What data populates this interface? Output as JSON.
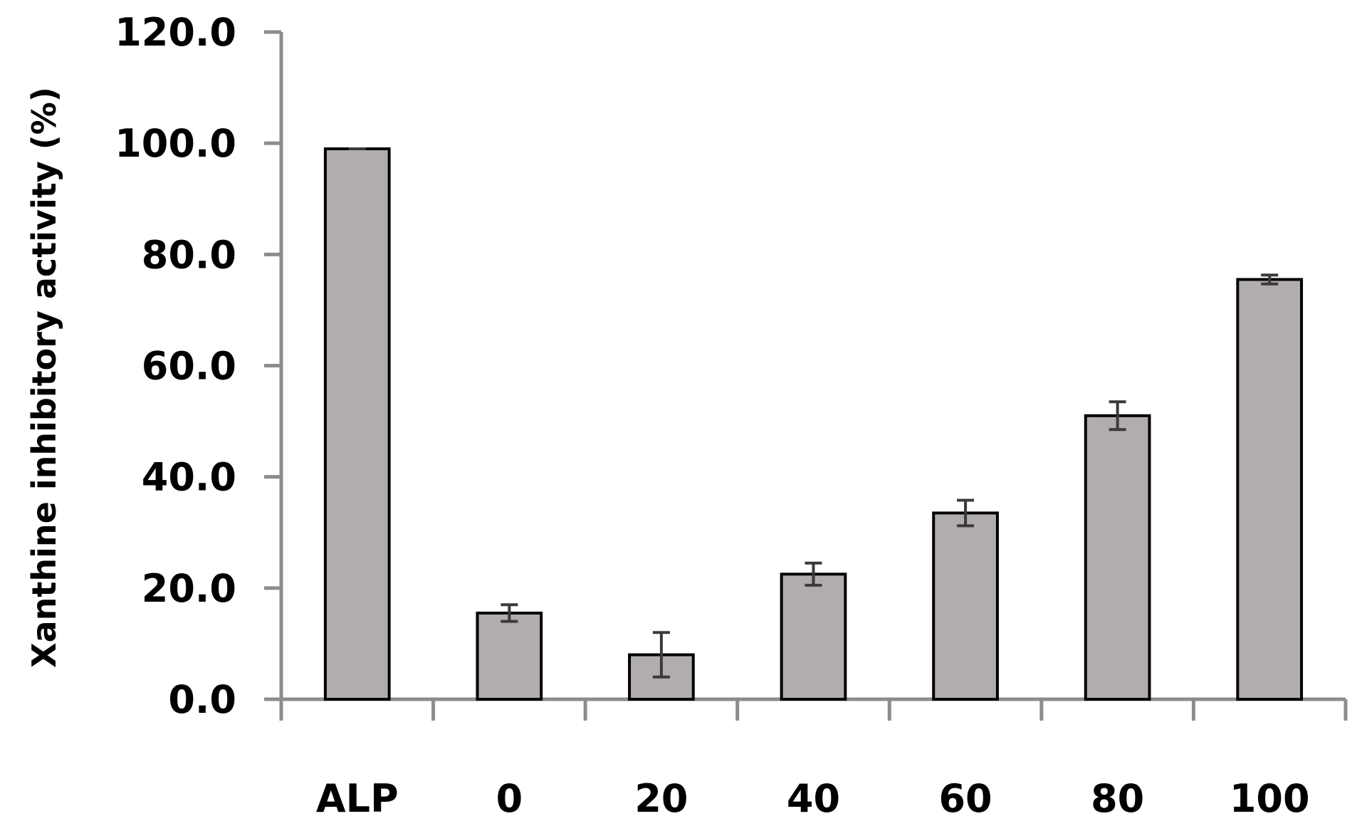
{
  "chart_data": {
    "type": "bar",
    "title": "",
    "xlabel": "",
    "ylabel": "Xanthine inhibitory activity (%)",
    "ylim": [
      0,
      120
    ],
    "yticks": [
      "0.0",
      "20.0",
      "40.0",
      "60.0",
      "80.0",
      "100.0",
      "120.0"
    ],
    "categories": [
      "ALP",
      "0",
      "20",
      "40",
      "60",
      "80",
      "100"
    ],
    "series": [
      {
        "values": [
          99.0,
          15.5,
          8.0,
          22.5,
          33.5,
          51.0,
          75.5
        ],
        "error": [
          0.0,
          1.5,
          4.0,
          2.0,
          2.3,
          2.5,
          0.8
        ]
      }
    ],
    "grid": false,
    "legend": "none",
    "colors": {
      "bar_fill": "#b1adac",
      "bar_stroke": "#000000",
      "axis": "#8c8c8c",
      "error_bar": "#3a3a3a"
    }
  }
}
